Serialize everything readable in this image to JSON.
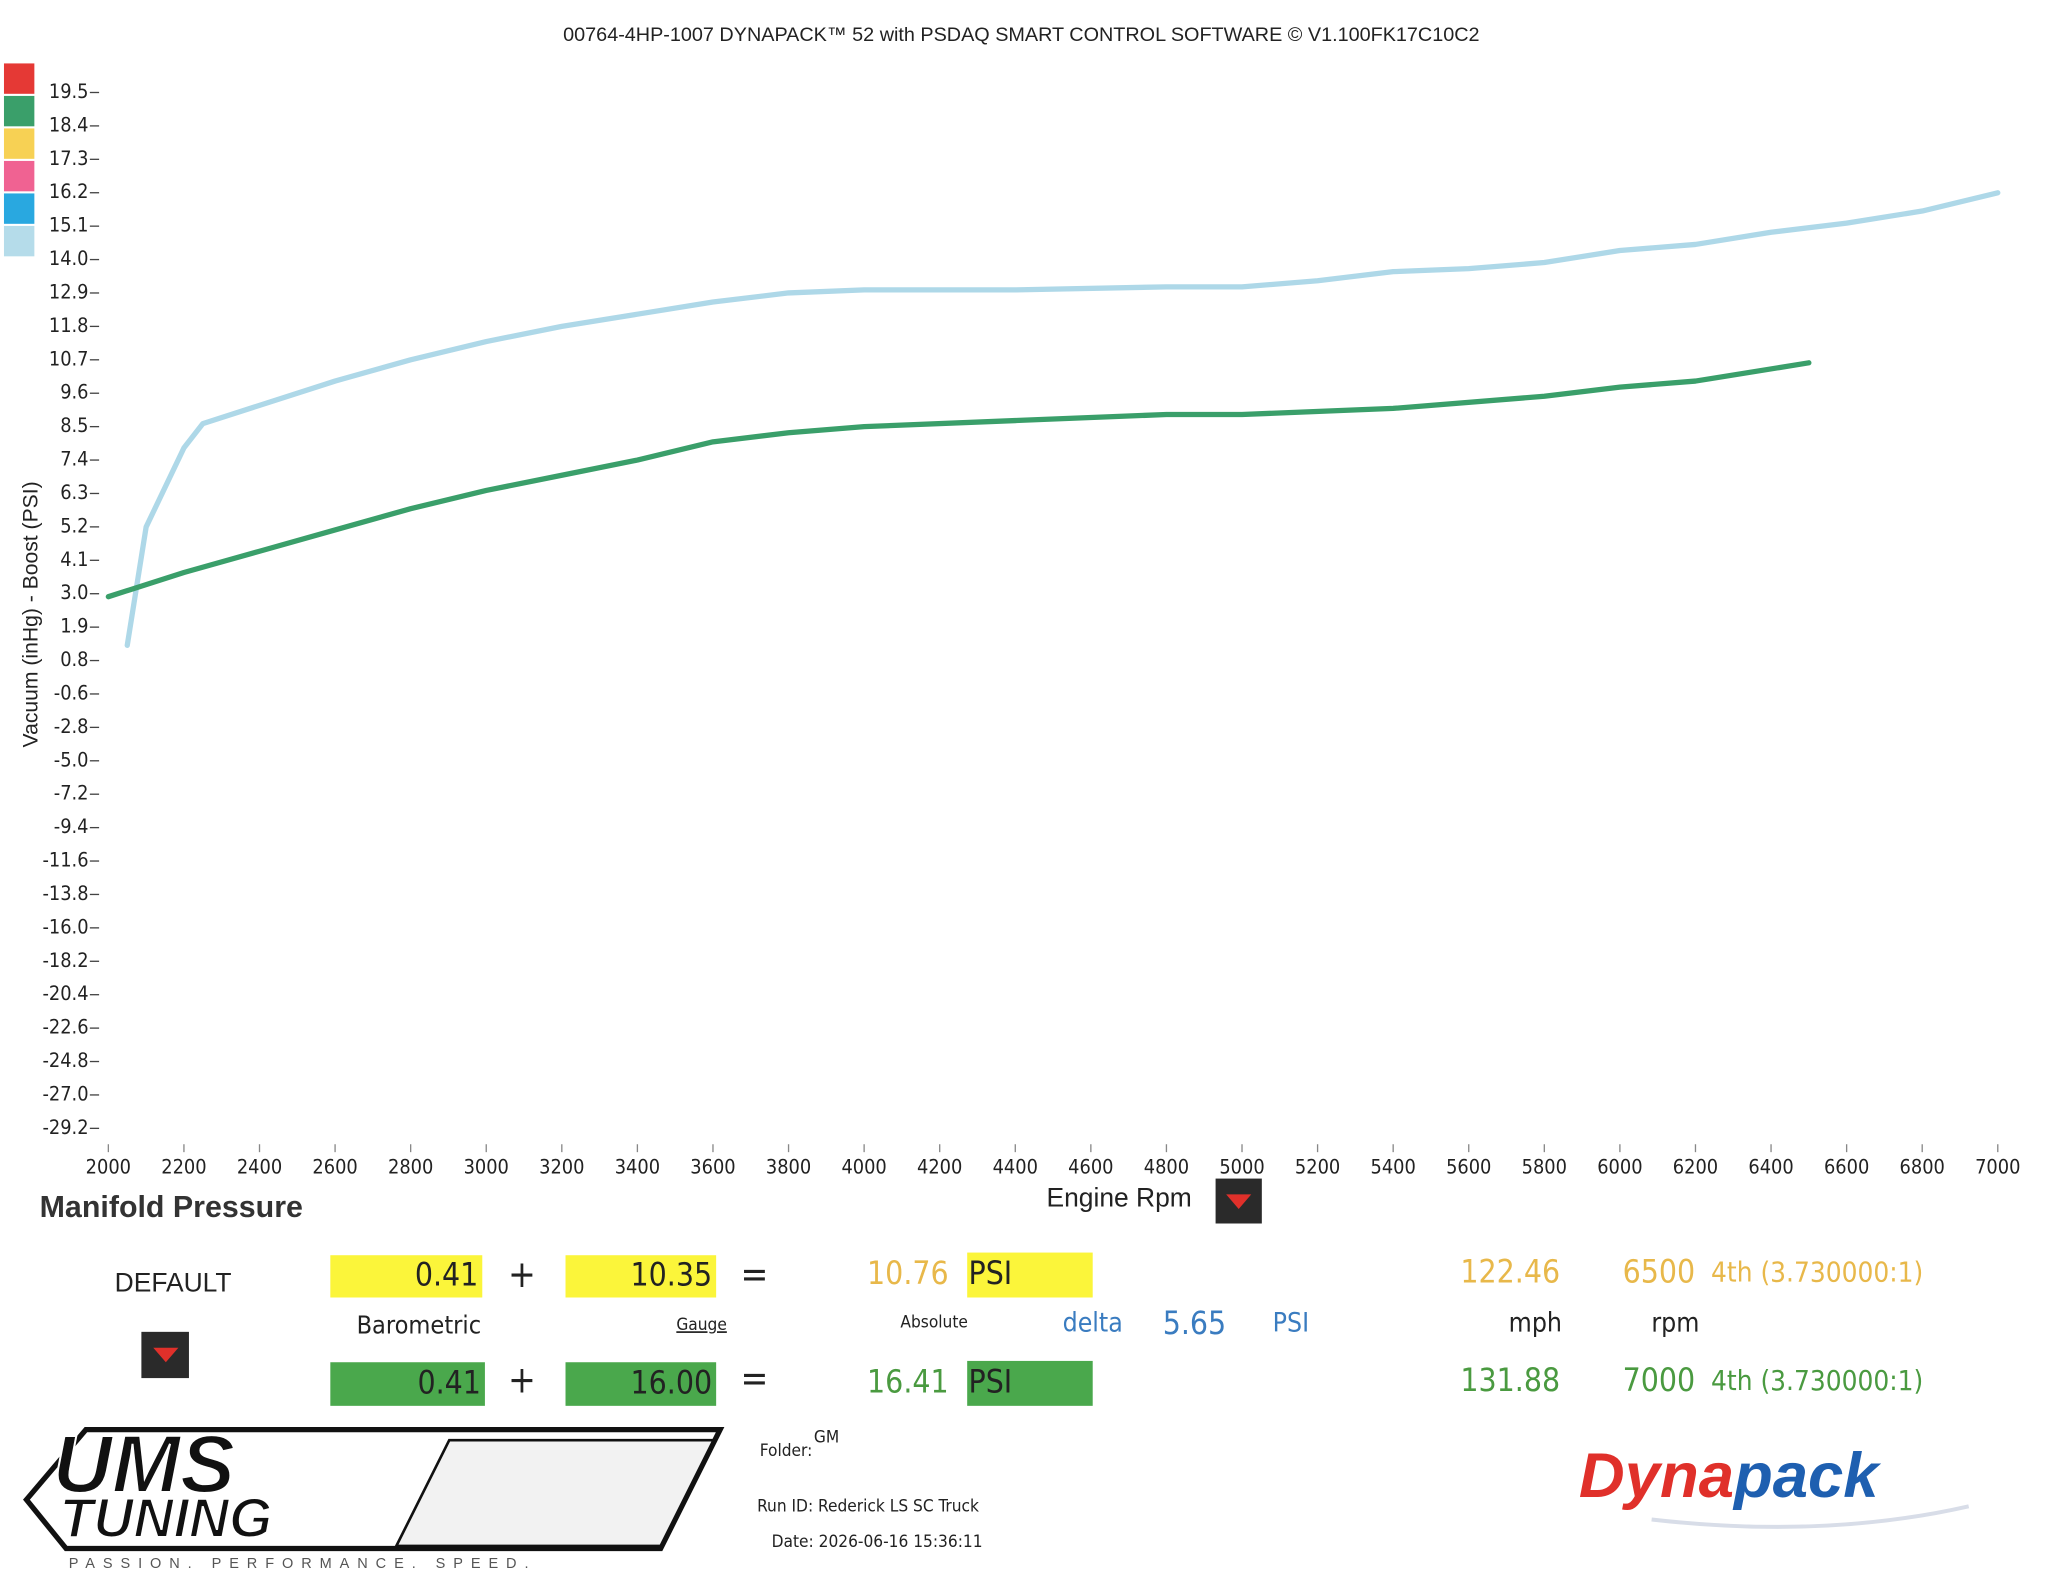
{
  "header": {
    "title": "00764-4HP-1007 DYNAPACK™ 52 with PSDAQ SMART CONTROL SOFTWARE © V1.100FK17C10C2"
  },
  "chart_data": {
    "type": "line",
    "title": "Manifold Pressure",
    "x_label": "Engine Rpm",
    "y_label": "Vacuum (inHg) - Boost (PSI)",
    "xlim": [
      2000,
      7000
    ],
    "xticks": [
      2000,
      2200,
      2400,
      2600,
      2800,
      3000,
      3200,
      3400,
      3600,
      3800,
      4000,
      4200,
      4400,
      4600,
      4800,
      5000,
      5200,
      5400,
      5600,
      5800,
      6000,
      6200,
      6400,
      6600,
      6800,
      7000
    ],
    "ylim": [
      -29.2,
      19.5
    ],
    "yticks": [
      19.5,
      18.4,
      17.3,
      16.2,
      15.1,
      {
        "value": 14.0,
        "label": "14.0"
      },
      12.9,
      11.8,
      10.7,
      9.6,
      8.5,
      7.4,
      6.3,
      5.2,
      4.1,
      {
        "value": 3.0,
        "label": "3.0"
      },
      1.9,
      0.8,
      -0.6,
      -2.8,
      {
        "value": -5.0,
        "label": "-5.0"
      },
      -7.2,
      -9.4,
      -11.6,
      -13.8,
      {
        "value": -16.0,
        "label": "-16.0"
      },
      -18.2,
      -20.4,
      -22.6,
      -24.8,
      {
        "value": -27.0,
        "label": "-27.0"
      },
      -29.2
    ],
    "series": [
      {
        "color": "#aed8e8",
        "x": [
          2050,
          2100,
          2200,
          2250,
          2400,
          2600,
          2800,
          3000,
          3200,
          3400,
          3600,
          3800,
          4000,
          4400,
          4800,
          5000,
          5200,
          5400,
          5600,
          5800,
          6000,
          6200,
          6400,
          6600,
          6800,
          7000
        ],
        "values": [
          1.3,
          5.2,
          7.8,
          8.6,
          9.2,
          10.0,
          10.7,
          11.3,
          11.8,
          12.2,
          12.6,
          12.9,
          13.0,
          13.0,
          13.1,
          13.1,
          13.3,
          13.6,
          13.7,
          13.9,
          14.3,
          14.5,
          14.9,
          15.2,
          15.6,
          16.2
        ]
      },
      {
        "color": "#3a9f6a",
        "x": [
          2000,
          2200,
          2400,
          2600,
          2800,
          3000,
          3200,
          3400,
          3600,
          3800,
          4000,
          4400,
          4800,
          5000,
          5400,
          5800,
          6000,
          6200,
          6500
        ],
        "values": [
          2.9,
          3.7,
          4.4,
          5.1,
          5.8,
          6.4,
          6.9,
          7.4,
          8.0,
          8.3,
          8.5,
          8.7,
          8.9,
          8.9,
          9.1,
          9.5,
          9.8,
          10.0,
          10.6
        ]
      }
    ],
    "swatches": [
      "#e53935",
      "#3a9f6a",
      "#f7d154",
      "#f06292",
      "#29a8e0",
      "#b5dcea"
    ]
  },
  "panel": {
    "preset": "DEFAULT",
    "plus": "+",
    "equals": "=",
    "labels": {
      "barometric": "Barometric",
      "gauge": "Gauge",
      "absolute": "Absolute",
      "delta": "delta",
      "delta_value": "5.65",
      "delta_unit": "PSI",
      "speed_unit": "mph",
      "rpm_unit": "rpm"
    },
    "rows": [
      {
        "barometric": "0.41",
        "gauge": "10.35",
        "absolute": "10.76",
        "unit": "PSI",
        "speed": "122.46",
        "rpm": "6500",
        "gear": "4th (3.730000:1)"
      },
      {
        "barometric": "0.41",
        "gauge": "16.00",
        "absolute": "16.41",
        "unit": "PSI",
        "speed": "131.88",
        "rpm": "7000",
        "gear": "4th (3.730000:1)"
      }
    ],
    "folder_label": "Folder:",
    "folder": "GM",
    "run_id": "Run ID: Rederick LS SC Truck",
    "date": "Date: 2026-06-16 15:36:11"
  },
  "logos": {
    "ums_line1": "UMS",
    "ums_line2": "TUNING",
    "ums_tagline": "PASSION.   PERFORMANCE.   SPEED.",
    "dyna_red": "Dyna",
    "dyna_blue": "pack"
  }
}
